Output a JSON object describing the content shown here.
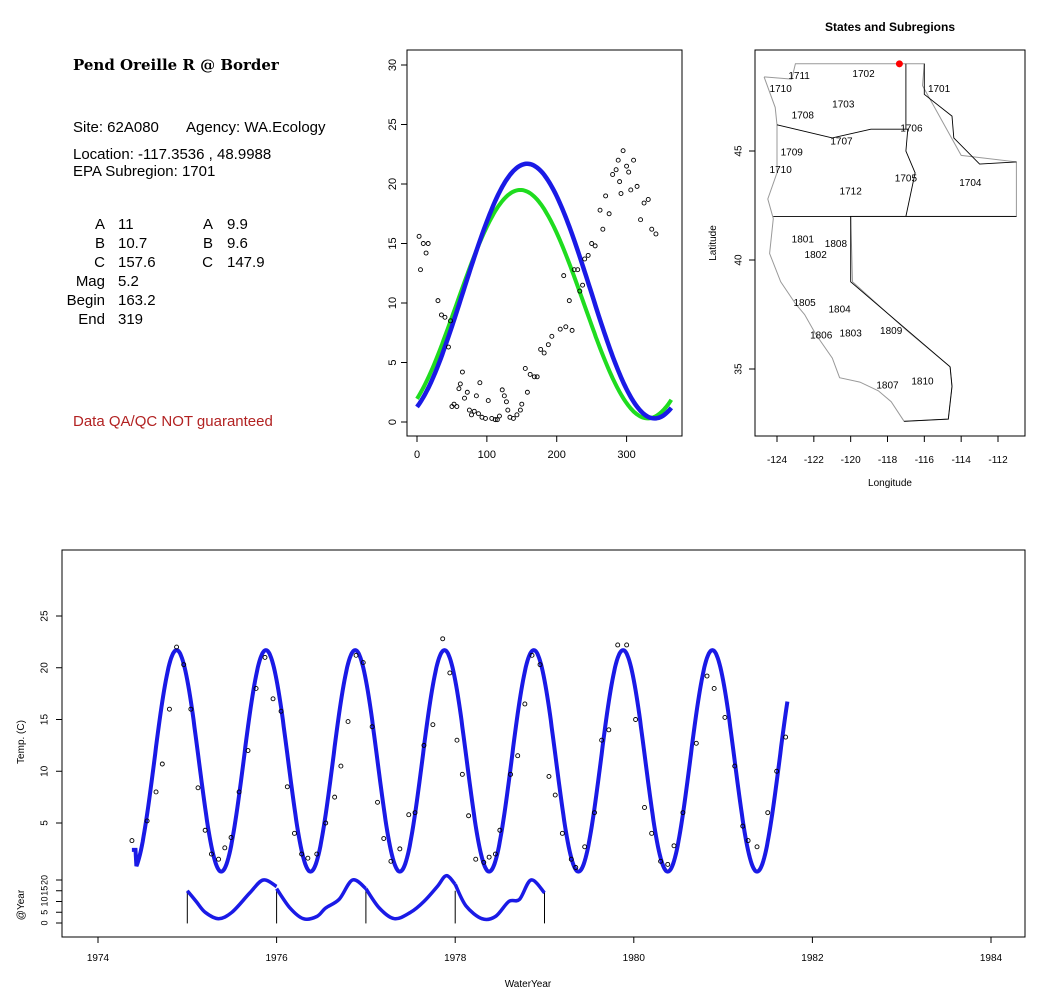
{
  "site": {
    "title": "Pend Oreille R @ Border",
    "site_line": "Site: 62A080",
    "agency_line": "Agency: WA.Ecology",
    "location_line": "Location: -117.3536 , 48.9988",
    "subregion_line": "EPA Subregion: 1701",
    "qa_note": "Data QA/QC NOT guaranteed"
  },
  "params": [
    {
      "label": "A",
      "value": "11",
      "label2": "A",
      "value2": "9.9"
    },
    {
      "label": "B",
      "value": "10.7",
      "label2": "B",
      "value2": "9.6"
    },
    {
      "label": "C",
      "value": "157.6",
      "label2": "C",
      "value2": "147.9"
    },
    {
      "label": "Mag",
      "value": "5.2",
      "label2": "",
      "value2": ""
    },
    {
      "label": "Begin",
      "value": "163.2",
      "label2": "",
      "value2": ""
    },
    {
      "label": "End",
      "value": "319",
      "label2": "",
      "value2": ""
    }
  ],
  "colors": {
    "blue_fit": "#1a1ae6",
    "green_fit": "#1fdc1f",
    "site_dot": "#ff0000",
    "qa_text": "#b22222"
  },
  "chart_data": [
    {
      "type": "scatter",
      "title": "",
      "xlabel": "",
      "ylabel": "",
      "xlim": [
        0,
        365
      ],
      "ylim": [
        0,
        30
      ],
      "xticks": [
        0,
        100,
        200,
        300
      ],
      "yticks": [
        0,
        5,
        10,
        15,
        20,
        25,
        30
      ],
      "points": [
        [
          3,
          15.6
        ],
        [
          5,
          12.8
        ],
        [
          9,
          15.0
        ],
        [
          13,
          14.2
        ],
        [
          16,
          15.0
        ],
        [
          30,
          10.2
        ],
        [
          35,
          9.0
        ],
        [
          40,
          8.8
        ],
        [
          45,
          6.3
        ],
        [
          48,
          8.5
        ],
        [
          50,
          1.3
        ],
        [
          53,
          1.5
        ],
        [
          57,
          1.3
        ],
        [
          60,
          2.8
        ],
        [
          62,
          3.2
        ],
        [
          65,
          4.2
        ],
        [
          68,
          2.0
        ],
        [
          72,
          2.5
        ],
        [
          75,
          1.0
        ],
        [
          78,
          0.6
        ],
        [
          82,
          0.9
        ],
        [
          85,
          2.2
        ],
        [
          88,
          0.7
        ],
        [
          90,
          3.3
        ],
        [
          93,
          0.4
        ],
        [
          98,
          0.3
        ],
        [
          102,
          1.8
        ],
        [
          107,
          0.3
        ],
        [
          112,
          0.2
        ],
        [
          115,
          0.2
        ],
        [
          118,
          0.5
        ],
        [
          122,
          2.7
        ],
        [
          125,
          2.2
        ],
        [
          128,
          1.7
        ],
        [
          130,
          1.0
        ],
        [
          133,
          0.4
        ],
        [
          138,
          0.3
        ],
        [
          143,
          0.6
        ],
        [
          148,
          1.0
        ],
        [
          150,
          1.5
        ],
        [
          155,
          4.5
        ],
        [
          158,
          2.5
        ],
        [
          162,
          4.0
        ],
        [
          168,
          3.8
        ],
        [
          172,
          3.8
        ],
        [
          177,
          6.1
        ],
        [
          182,
          5.8
        ],
        [
          188,
          6.5
        ],
        [
          193,
          7.2
        ],
        [
          205,
          7.8
        ],
        [
          210,
          12.3
        ],
        [
          213,
          8.0
        ],
        [
          218,
          10.2
        ],
        [
          222,
          7.7
        ],
        [
          225,
          12.8
        ],
        [
          230,
          12.8
        ],
        [
          233,
          11.0
        ],
        [
          237,
          11.5
        ],
        [
          240,
          13.7
        ],
        [
          245,
          14.0
        ],
        [
          250,
          15.0
        ],
        [
          255,
          14.8
        ],
        [
          262,
          17.8
        ],
        [
          266,
          16.2
        ],
        [
          270,
          19.0
        ],
        [
          275,
          17.5
        ],
        [
          280,
          20.8
        ],
        [
          285,
          21.2
        ],
        [
          288,
          22.0
        ],
        [
          290,
          20.2
        ],
        [
          292,
          19.2
        ],
        [
          295,
          22.8
        ],
        [
          300,
          21.5
        ],
        [
          303,
          21.0
        ],
        [
          306,
          19.5
        ],
        [
          310,
          22.0
        ],
        [
          315,
          19.8
        ],
        [
          320,
          17.0
        ],
        [
          325,
          18.4
        ],
        [
          331,
          18.7
        ],
        [
          336,
          16.2
        ],
        [
          342,
          15.8
        ]
      ],
      "series": [
        {
          "name": "",
          "color": "#1fdc1f",
          "fit": {
            "mean": 9.9,
            "amp": 9.6,
            "phase": 147.9
          }
        },
        {
          "name": "",
          "color": "#1a1ae6",
          "fit": {
            "mean": 11,
            "amp": 10.7,
            "phase": 157.6
          }
        }
      ]
    },
    {
      "type": "map",
      "title": "States and Subregions",
      "xlabel": "Longitude",
      "ylabel": "Latitude",
      "xlim": [
        -125.5,
        -110.5
      ],
      "ylim": [
        32.5,
        49.5
      ],
      "xticks": [
        -124,
        -122,
        -120,
        -118,
        -116,
        -114,
        -112
      ],
      "yticks": [
        35,
        40,
        45
      ],
      "site": {
        "lon": -117.3536,
        "lat": 48.9988
      },
      "subregion_labels": [
        {
          "code": "1702",
          "lon": -119.3,
          "lat": 48.4
        },
        {
          "code": "1711",
          "lon": -122.8,
          "lat": 48.3
        },
        {
          "code": "1710",
          "lon": -123.8,
          "lat": 47.7
        },
        {
          "code": "1701",
          "lon": -115.2,
          "lat": 47.7
        },
        {
          "code": "1703",
          "lon": -120.4,
          "lat": 47.0
        },
        {
          "code": "1708",
          "lon": -122.6,
          "lat": 46.5
        },
        {
          "code": "1706",
          "lon": -116.7,
          "lat": 45.9
        },
        {
          "code": "1707",
          "lon": -120.5,
          "lat": 45.3
        },
        {
          "code": "1709",
          "lon": -123.2,
          "lat": 44.8
        },
        {
          "code": "1710",
          "lon": -123.8,
          "lat": 44.0
        },
        {
          "code": "1705",
          "lon": -117.0,
          "lat": 43.6
        },
        {
          "code": "1704",
          "lon": -113.5,
          "lat": 43.4
        },
        {
          "code": "1712",
          "lon": -120.0,
          "lat": 43.0
        },
        {
          "code": "1801",
          "lon": -122.6,
          "lat": 40.8
        },
        {
          "code": "1808",
          "lon": -120.8,
          "lat": 40.6
        },
        {
          "code": "1802",
          "lon": -121.9,
          "lat": 40.1
        },
        {
          "code": "1805",
          "lon": -122.5,
          "lat": 37.9
        },
        {
          "code": "1804",
          "lon": -120.6,
          "lat": 37.6
        },
        {
          "code": "1806",
          "lon": -121.6,
          "lat": 36.4
        },
        {
          "code": "1803",
          "lon": -120.0,
          "lat": 36.5
        },
        {
          "code": "1809",
          "lon": -117.8,
          "lat": 36.6
        },
        {
          "code": "1810",
          "lon": -116.1,
          "lat": 34.3
        },
        {
          "code": "1807",
          "lon": -118.0,
          "lat": 34.1
        }
      ]
    },
    {
      "type": "line",
      "title": "",
      "xlabel": "WaterYear",
      "ylabel": "Temp. (C)",
      "ylabel2": "@Year",
      "xlim": [
        1974,
        1984.5
      ],
      "xticks": [
        1974,
        1976,
        1978,
        1980,
        1982,
        1984
      ],
      "yticks": [
        5,
        10,
        15,
        20,
        25
      ],
      "yticks2": [
        0,
        5,
        10,
        15,
        20
      ],
      "curve": {
        "start": 1974.38,
        "end": 1981.72,
        "mean": 11,
        "amp": 10.7,
        "peak": 1974.88,
        "start_value": 2.4,
        "end_value": 13.2
      },
      "points": [
        [
          1974.38,
          3.3
        ],
        [
          1974.55,
          5.2
        ],
        [
          1974.65,
          8.0
        ],
        [
          1974.72,
          10.7
        ],
        [
          1974.8,
          16.0
        ],
        [
          1974.88,
          22.0
        ],
        [
          1974.96,
          20.3
        ],
        [
          1975.04,
          16.0
        ],
        [
          1975.12,
          8.4
        ],
        [
          1975.2,
          4.3
        ],
        [
          1975.27,
          2.0
        ],
        [
          1975.35,
          1.5
        ],
        [
          1975.42,
          2.6
        ],
        [
          1975.49,
          3.6
        ],
        [
          1975.58,
          8.0
        ],
        [
          1975.68,
          12.0
        ],
        [
          1975.77,
          18.0
        ],
        [
          1975.87,
          21.0
        ],
        [
          1975.96,
          17.0
        ],
        [
          1976.05,
          15.8
        ],
        [
          1976.12,
          8.5
        ],
        [
          1976.2,
          4.0
        ],
        [
          1976.28,
          2.0
        ],
        [
          1976.35,
          1.6
        ],
        [
          1976.45,
          2.0
        ],
        [
          1976.55,
          5.0
        ],
        [
          1976.65,
          7.5
        ],
        [
          1976.72,
          10.5
        ],
        [
          1976.8,
          14.8
        ],
        [
          1976.89,
          21.2
        ],
        [
          1976.97,
          20.5
        ],
        [
          1977.07,
          14.3
        ],
        [
          1977.13,
          7.0
        ],
        [
          1977.2,
          3.5
        ],
        [
          1977.28,
          1.3
        ],
        [
          1977.38,
          2.5
        ],
        [
          1977.48,
          5.8
        ],
        [
          1977.55,
          6.0
        ],
        [
          1977.65,
          12.5
        ],
        [
          1977.75,
          14.5
        ],
        [
          1977.86,
          22.8
        ],
        [
          1977.94,
          19.5
        ],
        [
          1978.02,
          13.0
        ],
        [
          1978.08,
          9.7
        ],
        [
          1978.15,
          5.7
        ],
        [
          1978.23,
          1.5
        ],
        [
          1978.32,
          1.2
        ],
        [
          1978.38,
          1.7
        ],
        [
          1978.45,
          2.0
        ],
        [
          1978.5,
          4.3
        ],
        [
          1978.62,
          9.7
        ],
        [
          1978.7,
          11.5
        ],
        [
          1978.78,
          16.5
        ],
        [
          1978.86,
          21.2
        ],
        [
          1978.95,
          20.3
        ],
        [
          1979.05,
          9.5
        ],
        [
          1979.12,
          7.7
        ],
        [
          1979.2,
          4.0
        ],
        [
          1979.3,
          1.5
        ],
        [
          1979.35,
          0.7
        ],
        [
          1979.45,
          2.7
        ],
        [
          1979.56,
          6.0
        ],
        [
          1979.64,
          13.0
        ],
        [
          1979.72,
          14.0
        ],
        [
          1979.82,
          22.2
        ],
        [
          1979.92,
          22.2
        ],
        [
          1980.02,
          15.0
        ],
        [
          1980.12,
          6.5
        ],
        [
          1980.2,
          4.0
        ],
        [
          1980.3,
          1.3
        ],
        [
          1980.38,
          1.0
        ],
        [
          1980.45,
          2.8
        ],
        [
          1980.55,
          6.0
        ],
        [
          1980.7,
          12.7
        ],
        [
          1980.82,
          19.2
        ],
        [
          1980.9,
          18.0
        ],
        [
          1981.02,
          15.2
        ],
        [
          1981.13,
          10.5
        ],
        [
          1981.22,
          4.7
        ],
        [
          1981.28,
          3.3
        ],
        [
          1981.38,
          2.7
        ],
        [
          1981.5,
          6.0
        ],
        [
          1981.6,
          10.0
        ],
        [
          1981.7,
          13.3
        ]
      ],
      "year_strips": [
        {
          "year": 1975,
          "start": 1975.0,
          "end": 1976.0,
          "pts": [
            [
              0,
              15
            ],
            [
              0.1,
              10
            ],
            [
              0.2,
              5
            ],
            [
              0.35,
              2
            ],
            [
              0.5,
              5
            ],
            [
              0.7,
              14
            ],
            [
              0.85,
              20
            ],
            [
              1.0,
              17
            ]
          ]
        },
        {
          "year": 1976,
          "start": 1976.0,
          "end": 1977.0,
          "pts": [
            [
              0,
              16
            ],
            [
              0.15,
              7
            ],
            [
              0.3,
              2
            ],
            [
              0.45,
              3
            ],
            [
              0.55,
              7
            ],
            [
              0.7,
              11
            ],
            [
              0.85,
              20
            ],
            [
              1.0,
              16
            ]
          ]
        },
        {
          "year": 1977,
          "start": 1977.0,
          "end": 1978.0,
          "pts": [
            [
              0,
              16
            ],
            [
              0.15,
              7
            ],
            [
              0.32,
              2
            ],
            [
              0.5,
              5
            ],
            [
              0.65,
              10
            ],
            [
              0.8,
              17
            ],
            [
              0.9,
              22
            ],
            [
              1.0,
              18
            ]
          ]
        },
        {
          "year": 1978,
          "start": 1978.0,
          "end": 1979.0,
          "pts": [
            [
              0,
              18
            ],
            [
              0.12,
              8
            ],
            [
              0.3,
              2
            ],
            [
              0.45,
              3
            ],
            [
              0.6,
              10
            ],
            [
              0.72,
              11
            ],
            [
              0.85,
              20
            ],
            [
              1.0,
              14
            ]
          ]
        }
      ],
      "year_markers": [
        1975,
        1976,
        1977,
        1978,
        1979
      ]
    }
  ]
}
